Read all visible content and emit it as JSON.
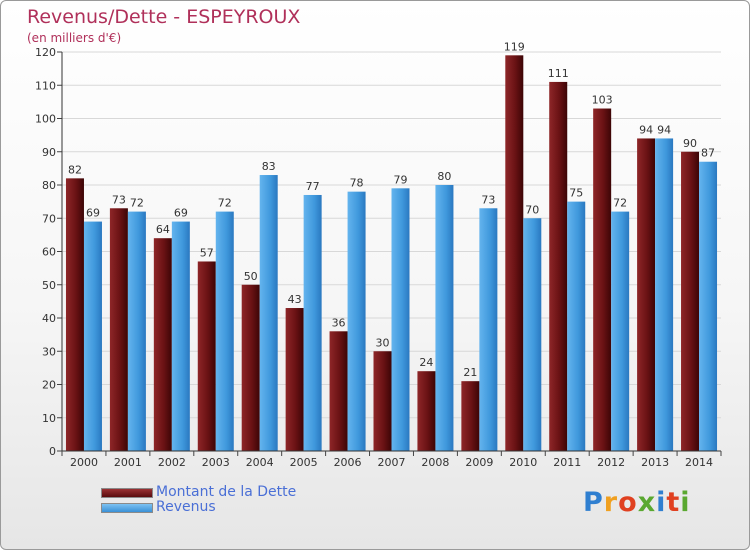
{
  "header": {
    "title": "Revenus/Dette - ESPEYROUX",
    "subtitle": "(en milliers d'€)"
  },
  "chart_data": {
    "type": "bar",
    "categories": [
      "2000",
      "2001",
      "2002",
      "2003",
      "2004",
      "2005",
      "2006",
      "2007",
      "2008",
      "2009",
      "2010",
      "2011",
      "2012",
      "2013",
      "2014"
    ],
    "series": [
      {
        "name": "Montant de la Dette",
        "values": [
          82,
          73,
          64,
          57,
          50,
          43,
          36,
          30,
          24,
          21,
          119,
          111,
          103,
          94,
          90
        ],
        "color": "#7a1a1c"
      },
      {
        "name": "Revenus",
        "values": [
          69,
          72,
          69,
          72,
          83,
          77,
          78,
          79,
          80,
          73,
          70,
          75,
          72,
          94,
          87
        ],
        "color": "#4fa6e6"
      }
    ],
    "ylim": [
      0,
      120
    ],
    "yticks": [
      0,
      10,
      20,
      30,
      40,
      50,
      60,
      70,
      80,
      90,
      100,
      110,
      120
    ],
    "grid": true,
    "legend_position": "bottom-left"
  },
  "legend": {
    "items": [
      {
        "label": "Montant de la Dette",
        "color": "#7a1a1c"
      },
      {
        "label": "Revenus",
        "color": "#4fa6e6"
      }
    ]
  },
  "brand": {
    "logo_text": "Proxiti",
    "letter_colors": [
      "#2f7fd0",
      "#f0a020",
      "#e04020",
      "#5aa830",
      "#2f7fd0",
      "#e04020",
      "#5aa830"
    ]
  }
}
